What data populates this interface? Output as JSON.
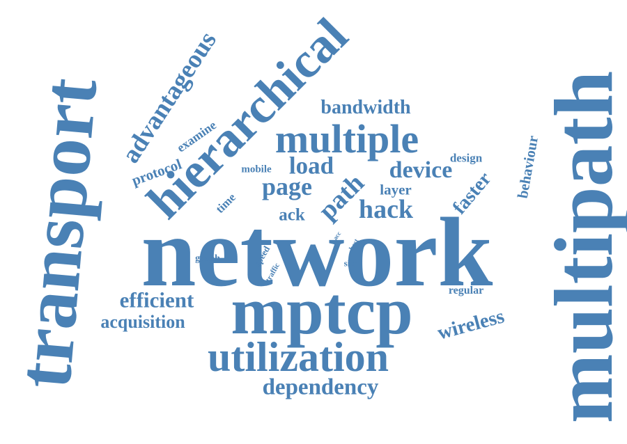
{
  "cloud": {
    "color": "#4a81b5",
    "words": [
      {
        "text": "network",
        "weight": 100
      },
      {
        "text": "mptcp",
        "weight": 70
      },
      {
        "text": "multipath",
        "weight": 88
      },
      {
        "text": "transport",
        "weight": 82
      },
      {
        "text": "hierarchical",
        "weight": 52
      },
      {
        "text": "utilization",
        "weight": 45
      },
      {
        "text": "multiple",
        "weight": 42
      },
      {
        "text": "advantageous",
        "weight": 26
      },
      {
        "text": "dependency",
        "weight": 24
      },
      {
        "text": "path",
        "weight": 27
      },
      {
        "text": "hack",
        "weight": 28
      },
      {
        "text": "page",
        "weight": 26
      },
      {
        "text": "load",
        "weight": 25
      },
      {
        "text": "device",
        "weight": 24
      },
      {
        "text": "bandwidth",
        "weight": 20
      },
      {
        "text": "wireless",
        "weight": 21
      },
      {
        "text": "efficient",
        "weight": 22
      },
      {
        "text": "acquisition",
        "weight": 19
      },
      {
        "text": "faster",
        "weight": 20
      },
      {
        "text": "behaviour",
        "weight": 15
      },
      {
        "text": "layer",
        "weight": 15
      },
      {
        "text": "ack",
        "weight": 17
      },
      {
        "text": "protocol",
        "weight": 15
      },
      {
        "text": "examine",
        "weight": 13
      },
      {
        "text": "design",
        "weight": 12
      },
      {
        "text": "mobile",
        "weight": 11
      },
      {
        "text": "time",
        "weight": 12
      },
      {
        "text": "regular",
        "weight": 12
      },
      {
        "text": "graph",
        "weight": 10
      },
      {
        "text": "speed",
        "weight": 9
      },
      {
        "text": "traffic",
        "weight": 8
      },
      {
        "text": "site",
        "weight": 9
      },
      {
        "text": "best",
        "weight": 7
      },
      {
        "text": "acc",
        "weight": 6
      }
    ]
  }
}
